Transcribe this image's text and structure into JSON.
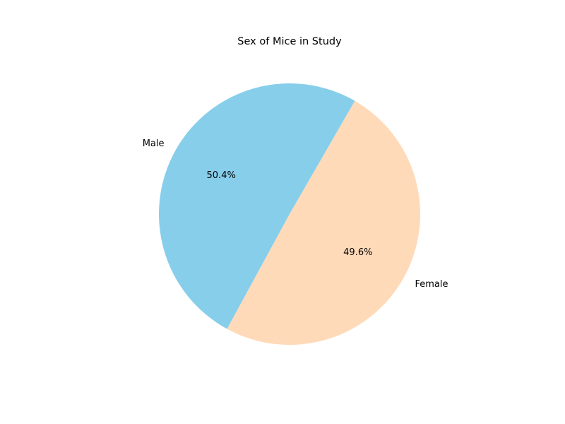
{
  "chart_data": {
    "type": "pie",
    "title": "Sex of Mice in Study",
    "slices": [
      {
        "label": "Male",
        "value": 50.4,
        "pct_label": "50.4%",
        "color": "#87ceeb"
      },
      {
        "label": "Female",
        "value": 49.6,
        "pct_label": "49.6%",
        "color": "#ffdab9"
      }
    ],
    "start_angle_deg": 60,
    "direction": "counterclockwise",
    "legend": "none"
  }
}
